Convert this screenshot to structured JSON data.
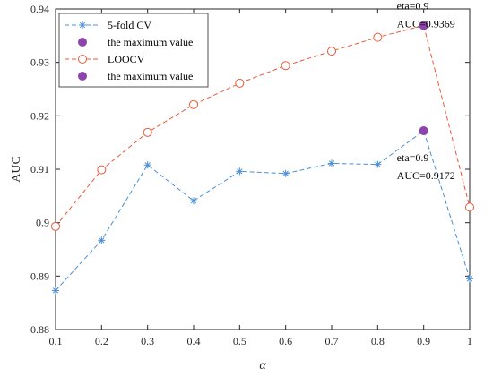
{
  "chart_data": {
    "type": "line",
    "xlabel": "α",
    "ylabel": "AUC",
    "xlim": [
      0.1,
      1.0
    ],
    "ylim": [
      0.88,
      0.94
    ],
    "x_ticks": [
      "0.1",
      "0.2",
      "0.3",
      "0.4",
      "0.5",
      "0.6",
      "0.7",
      "0.8",
      "0.9",
      "1"
    ],
    "y_ticks": [
      "0.88",
      "0.89",
      "0.9",
      "0.91",
      "0.92",
      "0.93",
      "0.94"
    ],
    "x": [
      0.1,
      0.2,
      0.3,
      0.4,
      0.5,
      0.6,
      0.7,
      0.8,
      0.9,
      1.0
    ],
    "grid": false,
    "legend_placement": "top-left",
    "series": [
      {
        "name": "5-fold CV",
        "marker": "asterisk",
        "line_style": "dashed",
        "color": "#4a8fd4",
        "values": [
          0.8873,
          0.8967,
          0.9108,
          0.9041,
          0.9096,
          0.9092,
          0.9111,
          0.9109,
          0.9172,
          0.8895
        ]
      },
      {
        "name": "LOOCV",
        "marker": "circle-open",
        "line_style": "dashed",
        "color": "#e8593a",
        "values": [
          0.8993,
          0.9099,
          0.9169,
          0.9221,
          0.9261,
          0.9294,
          0.9321,
          0.9347,
          0.9369,
          0.9029
        ]
      }
    ],
    "maximum_points": [
      {
        "legend": "the maximum value",
        "x": 0.9,
        "y": 0.9172,
        "color": "#8e44ad",
        "label_line1": "eta=0.9",
        "label_line2": "AUC=0.9172"
      },
      {
        "legend": "the maximum value",
        "x": 0.9,
        "y": 0.9369,
        "color": "#8e44ad",
        "label_line1": "eta=0.9",
        "label_line2": "AUC=0.9369"
      }
    ],
    "legend": [
      {
        "label": "5-fold CV",
        "kind": "series",
        "index": 0
      },
      {
        "label": "the maximum value",
        "kind": "max",
        "index": 0
      },
      {
        "label": "LOOCV",
        "kind": "series",
        "index": 1
      },
      {
        "label": "the maximum value",
        "kind": "max",
        "index": 1
      }
    ]
  }
}
